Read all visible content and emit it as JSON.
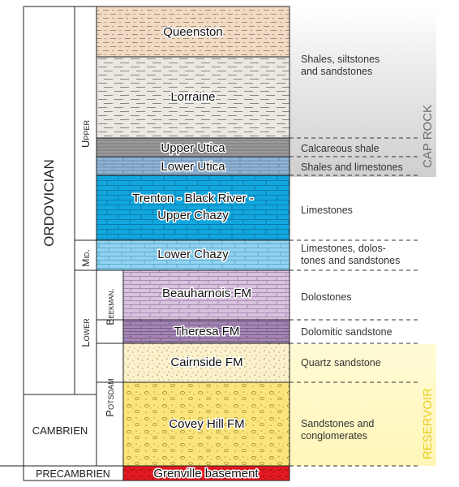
{
  "periods": {
    "ordovician": "ORDOVICIAN",
    "cambrien": "CAMBRIEN",
    "precambrien": "PRECAMBRIEN"
  },
  "epochs": {
    "upper": "Upper",
    "mid": "Mid.",
    "lower": "Lower"
  },
  "groups": {
    "beekman": "Beekman.",
    "potsdam": "Potsdam"
  },
  "formations": {
    "queenston": "Queenston",
    "lorraine": "Lorraine",
    "upper_utica": "Upper Utica",
    "lower_utica": "Lower Utica",
    "trenton_line1": "Trenton - Black River -",
    "trenton_line2": "Upper Chazy",
    "lower_chazy": "Lower Chazy",
    "beauharnois": "Beauharnois FM",
    "theresa": "Theresa FM",
    "cairnside": "Cairnside FM",
    "covey_hill": "Covey Hill FM",
    "grenville": "Grenville basement"
  },
  "lithology": {
    "shales_line1": "Shales, siltstones",
    "shales_line2": "and sandstones",
    "calcareous": "Calcareous shale",
    "shales_limestones": "Shales and limestones",
    "limestones": "Limestones",
    "limestones_dolo_line1": "Limestones, dolos-",
    "limestones_dolo_line2": "tones and sandstones",
    "dolostones": "Dolostones",
    "dolomitic": "Dolomitic sandstone",
    "quartz": "Quartz sandstone",
    "sandstones_line1": "Sandstones and",
    "sandstones_line2": "conglomerates"
  },
  "zones": {
    "cap_rock": "CAP ROCK",
    "reservoir": "RESERVOIR"
  },
  "colors": {
    "queenston": "#f1d9c3",
    "lorraine": "#ebe7e1",
    "upper_utica": "#a7a7a7",
    "lower_utica": "#8fb3d4",
    "trenton": "#11a7de",
    "lower_chazy": "#92d3f2",
    "beauharnois": "#d8c2de",
    "theresa": "#a587b4",
    "cairnside": "#fbf2cc",
    "covey_hill": "#fbe57a",
    "grenville": "#e51920",
    "cap_rock_zone": "#d6d6d6",
    "reservoir_zone": "#fffbd2",
    "reservoir_text": "#f2dd30"
  }
}
